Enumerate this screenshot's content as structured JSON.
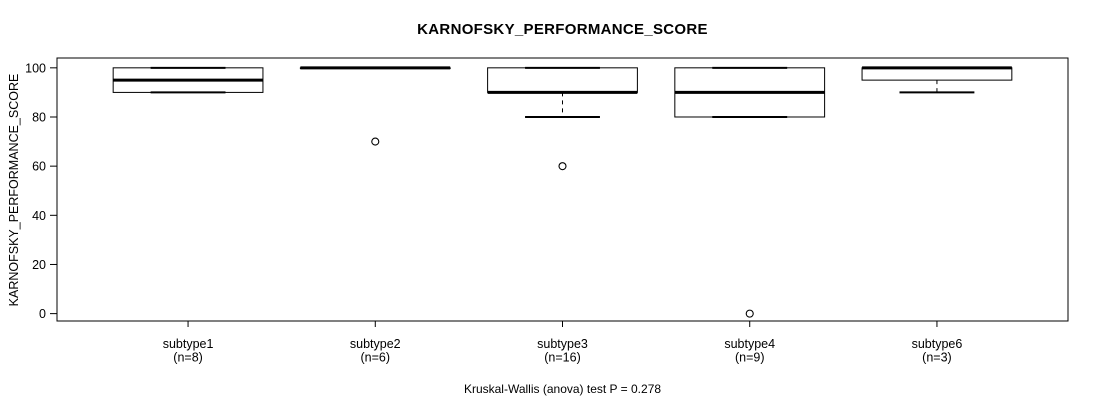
{
  "chart_data": {
    "type": "boxplot",
    "title": "KARNOFSKY_PERFORMANCE_SCORE",
    "ylabel": "KARNOFSKY_PERFORMANCE_SCORE",
    "xlabel": "",
    "footnote": "Kruskal-Wallis (anova) test P = 0.278",
    "ylim": [
      -3,
      104
    ],
    "yticks": [
      0,
      20,
      40,
      60,
      80,
      100
    ],
    "grid": false,
    "legend_position": "none",
    "groups": [
      {
        "label": "subtype1",
        "count_label": "(n=8)",
        "n": 8,
        "whisker_low": 90,
        "q1": 90,
        "median": 95,
        "q3": 100,
        "whisker_high": 100,
        "outliers": []
      },
      {
        "label": "subtype2",
        "count_label": "(n=6)",
        "n": 6,
        "whisker_low": 100,
        "q1": 100,
        "median": 100,
        "q3": 100,
        "whisker_high": 100,
        "outliers": [
          70
        ]
      },
      {
        "label": "subtype3",
        "count_label": "(n=16)",
        "n": 16,
        "whisker_low": 80,
        "q1": 90,
        "median": 90,
        "q3": 100,
        "whisker_high": 100,
        "outliers": [
          60
        ]
      },
      {
        "label": "subtype4",
        "count_label": "(n=9)",
        "n": 9,
        "whisker_low": 80,
        "q1": 80,
        "median": 90,
        "q3": 100,
        "whisker_high": 100,
        "outliers": [
          0
        ]
      },
      {
        "label": "subtype6",
        "count_label": "(n=3)",
        "n": 3,
        "whisker_low": 90,
        "q1": 95,
        "median": 100,
        "q3": 100,
        "whisker_high": 100,
        "outliers": []
      }
    ],
    "colors": {
      "foreground": "#000000",
      "box_fill": "#ffffff",
      "background": "#ffffff"
    }
  }
}
